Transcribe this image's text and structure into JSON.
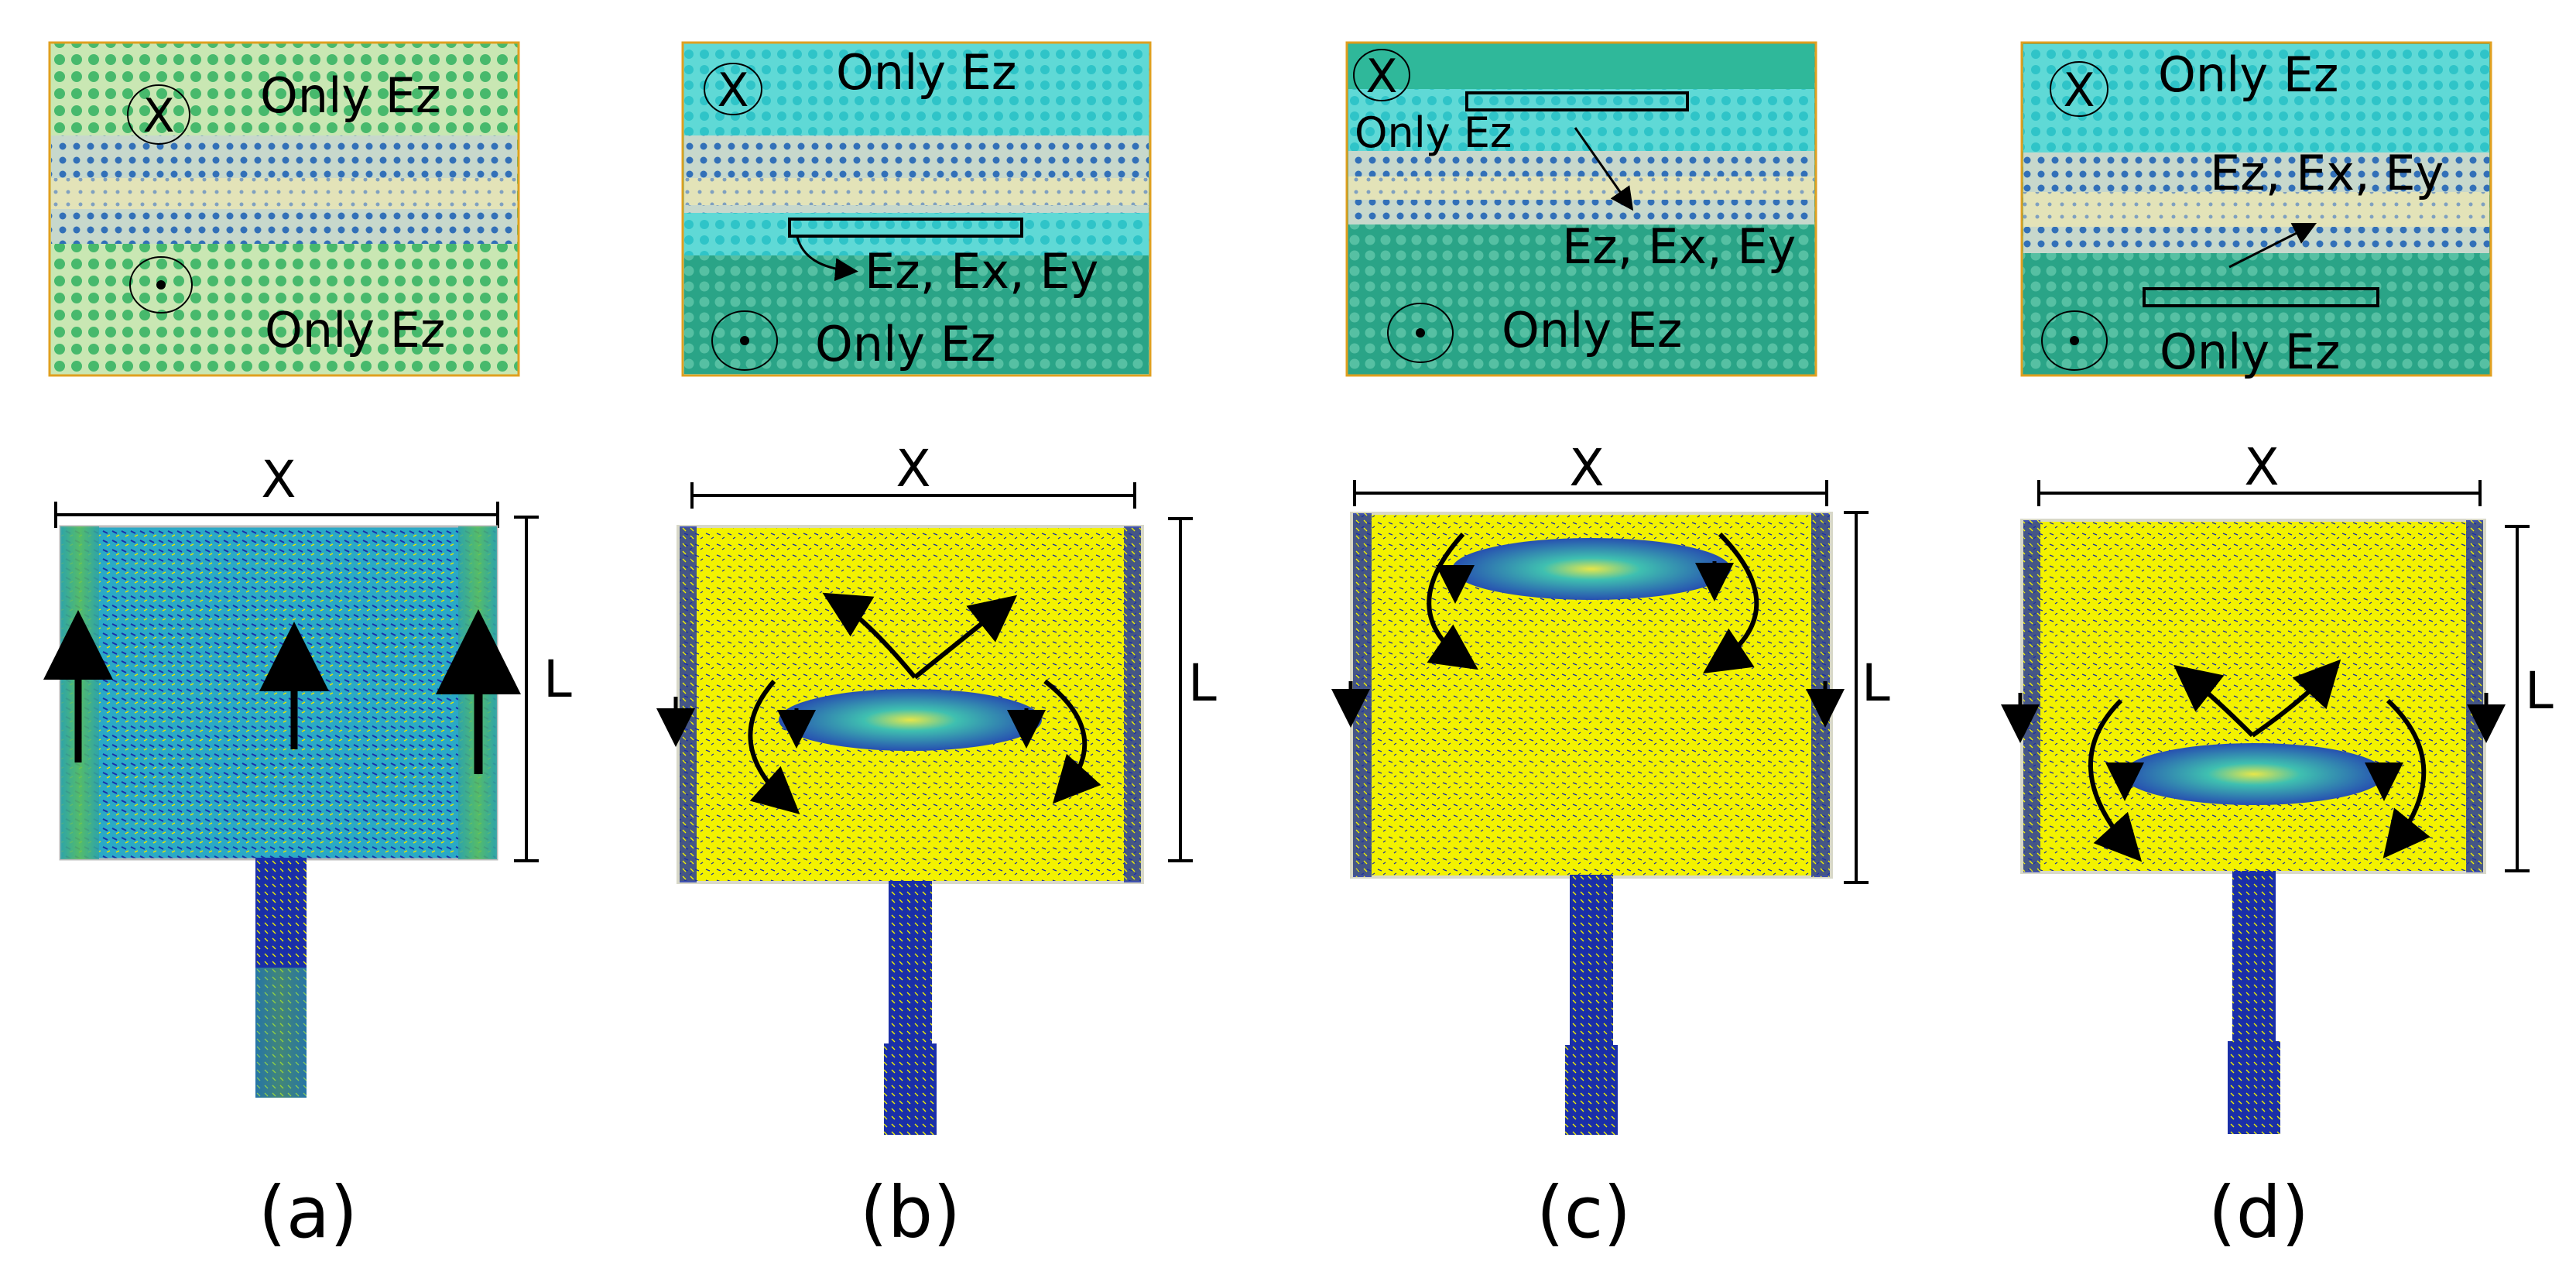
{
  "panels": [
    {
      "label": "(a)",
      "top_texts": [
        "Only Ez",
        "Only Ez"
      ],
      "into_symbol": "X",
      "x_label": "X",
      "l_label": "L"
    },
    {
      "label": "(b)",
      "top_texts": [
        "Only Ez",
        "Ez, Ex, Ey",
        "Only Ez"
      ],
      "into_symbol": "X",
      "x_label": "X",
      "l_label": "L"
    },
    {
      "label": "(c)",
      "top_texts": [
        "Only Ez",
        "Ez, Ex, Ey",
        "Only Ez"
      ],
      "into_symbol": "X",
      "x_label": "X",
      "l_label": "L"
    },
    {
      "label": "(d)",
      "top_texts": [
        "Only Ez",
        "Ez, Ex, Ey",
        "Only Ez"
      ],
      "into_symbol": "X",
      "x_label": "X",
      "l_label": "L"
    }
  ],
  "colors": {
    "field_yellow": "#f2f200",
    "field_blue": "#1a2fa8",
    "field_cyan": "#2bb5c9",
    "field_green": "#3db86a",
    "map_border": "#e0a020"
  }
}
